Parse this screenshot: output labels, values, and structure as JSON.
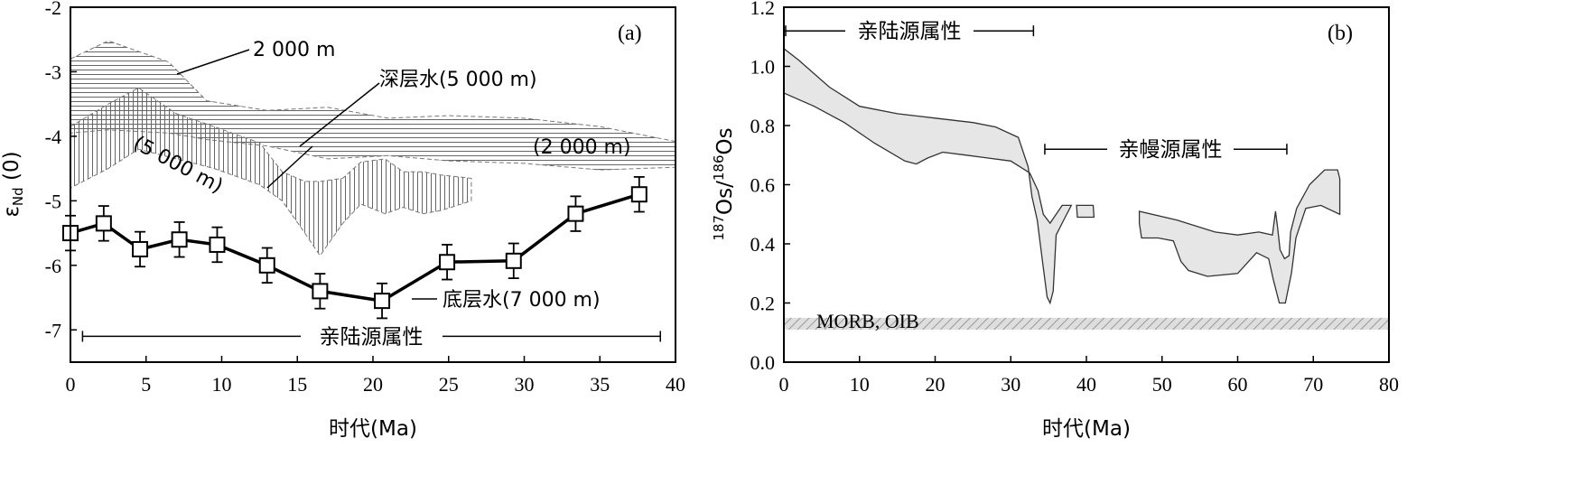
{
  "colors": {
    "ink": "#000000",
    "os_fill": "#e6e6e6",
    "band_stroke": "#777777",
    "morb_fill": "#d8d8d8"
  },
  "chart_data": [
    {
      "panel": "(a)",
      "type": "line",
      "xlabel": "时代(Ma)",
      "ylabel": "εNd (0)",
      "ylabel_main": "ε",
      "ylabel_sub": "Nd",
      "ylabel_tail": " (0)",
      "xlim": [
        0,
        40
      ],
      "ylim": [
        -7.5,
        -2
      ],
      "xticks": [
        "0",
        "5",
        "10",
        "15",
        "20",
        "25",
        "30",
        "35",
        "40"
      ],
      "yticks": [
        "-2",
        "-3",
        "-4",
        "-5",
        "-6",
        "-7"
      ],
      "grid": false,
      "series": [
        {
          "name": "底层水(7 000 m)",
          "x": [
            0,
            2.2,
            4.6,
            7.2,
            9.7,
            13,
            16.5,
            20.6,
            24.9,
            29.3,
            33.4,
            37.6
          ],
          "y": [
            -5.5,
            -5.35,
            -5.75,
            -5.6,
            -5.68,
            -6.0,
            -6.4,
            -6.55,
            -5.95,
            -5.93,
            -5.2,
            -4.9
          ],
          "err": [
            0.27,
            0.27,
            0.27,
            0.27,
            0.27,
            0.27,
            0.27,
            0.27,
            0.27,
            0.27,
            0.27,
            0.27
          ],
          "label_x": 22.2,
          "label_y": -6.55
        }
      ],
      "bands": [
        {
          "id": "band-2000m",
          "label": "2 000 m",
          "pattern": "horizontal",
          "x": [
            0,
            2.5,
            6.5,
            9,
            13,
            17,
            21,
            25,
            30,
            35,
            40
          ],
          "upper": [
            -2.8,
            -2.52,
            -2.85,
            -3.45,
            -3.6,
            -3.55,
            -3.72,
            -3.68,
            -3.72,
            -3.85,
            -4.08
          ],
          "lower": [
            -3.95,
            -3.9,
            -3.95,
            -4.05,
            -4.15,
            -4.35,
            -4.3,
            -4.38,
            -4.42,
            -4.52,
            -4.48
          ]
        },
        {
          "id": "band-5000m",
          "label": "(5 000 m)",
          "pattern": "vertical",
          "x": [
            0,
            2.5,
            4.5,
            7,
            9.5,
            12.5,
            14,
            15.5,
            16.5,
            18,
            19.2,
            20.8,
            22,
            23.3,
            24.5,
            26.5
          ],
          "upper": [
            -3.85,
            -3.5,
            -3.25,
            -3.65,
            -3.85,
            -4.1,
            -4.55,
            -4.7,
            -4.7,
            -4.65,
            -4.4,
            -4.35,
            -4.55,
            -4.55,
            -4.6,
            -4.65
          ],
          "lower": [
            -4.8,
            -4.5,
            -4.2,
            -4.35,
            -4.5,
            -4.75,
            -5.0,
            -5.5,
            -5.85,
            -5.35,
            -5.05,
            -5.2,
            -5.1,
            -5.2,
            -5.15,
            -5.0
          ]
        }
      ],
      "annotations": {
        "label_2000m": "2 000 m",
        "label_deep": "深层水(5 000 m)",
        "label_2000m_paren": "(2 000 m)",
        "label_5000m_paren": "(5 000 m)",
        "label_bottom": "底层水(7 000 m)",
        "range_label": "亲陆源属性",
        "range_x": [
          0.8,
          39
        ],
        "range_y": -7.1
      }
    },
    {
      "panel": "(b)",
      "type": "area",
      "xlabel": "时代(Ma)",
      "ylabel": "187Os/186Os",
      "ylabel_sup1": "187",
      "ylabel_mid": "Os/",
      "ylabel_sup2": "186",
      "ylabel_end": "Os",
      "xlim": [
        0,
        80
      ],
      "ylim": [
        0,
        1.2
      ],
      "xticks": [
        "0",
        "10",
        "20",
        "30",
        "40",
        "50",
        "60",
        "70",
        "80"
      ],
      "yticks": [
        "0.0",
        "0.2",
        "0.4",
        "0.6",
        "0.8",
        "1.0",
        "1.2"
      ],
      "grid": false,
      "regions": [
        {
          "id": "os-main",
          "points": [
            [
              0,
              1.06
            ],
            [
              2,
              1.02
            ],
            [
              6,
              0.93
            ],
            [
              10,
              0.865
            ],
            [
              15,
              0.84
            ],
            [
              20,
              0.825
            ],
            [
              25,
              0.81
            ],
            [
              28,
              0.795
            ],
            [
              31,
              0.76
            ],
            [
              32.3,
              0.66
            ],
            [
              32.8,
              0.56
            ],
            [
              33.5,
              0.48
            ],
            [
              34.2,
              0.34
            ],
            [
              34.8,
              0.22
            ],
            [
              35.2,
              0.2
            ],
            [
              35.6,
              0.24
            ],
            [
              35.8,
              0.33
            ],
            [
              36,
              0.43
            ],
            [
              37.2,
              0.49
            ],
            [
              38,
              0.53
            ],
            [
              36.8,
              0.53
            ],
            [
              35.2,
              0.47
            ],
            [
              34.3,
              0.5
            ],
            [
              33.6,
              0.58
            ],
            [
              32.5,
              0.64
            ],
            [
              30,
              0.68
            ],
            [
              27,
              0.69
            ],
            [
              24,
              0.7
            ],
            [
              21,
              0.71
            ],
            [
              19,
              0.69
            ],
            [
              17.5,
              0.67
            ],
            [
              16,
              0.68
            ],
            [
              12,
              0.74
            ],
            [
              8,
              0.81
            ],
            [
              4,
              0.865
            ],
            [
              0,
              0.91
            ]
          ]
        },
        {
          "id": "os-small",
          "points": [
            [
              38.7,
              0.53
            ],
            [
              40.9,
              0.53
            ],
            [
              41,
              0.49
            ],
            [
              38.8,
              0.49
            ]
          ]
        },
        {
          "id": "os-right",
          "points": [
            [
              47,
              0.51
            ],
            [
              52,
              0.48
            ],
            [
              57,
              0.44
            ],
            [
              60,
              0.43
            ],
            [
              62.8,
              0.44
            ],
            [
              64.6,
              0.43
            ],
            [
              65,
              0.51
            ],
            [
              65.3,
              0.45
            ],
            [
              65.6,
              0.38
            ],
            [
              66.2,
              0.35
            ],
            [
              66.8,
              0.36
            ],
            [
              67,
              0.44
            ],
            [
              67.8,
              0.52
            ],
            [
              69.5,
              0.6
            ],
            [
              71.5,
              0.65
            ],
            [
              73.2,
              0.65
            ],
            [
              73.5,
              0.62
            ],
            [
              73.5,
              0.5
            ],
            [
              71,
              0.53
            ],
            [
              69,
              0.52
            ],
            [
              67.7,
              0.42
            ],
            [
              67.1,
              0.3
            ],
            [
              66.3,
              0.2
            ],
            [
              65.5,
              0.2
            ],
            [
              64.7,
              0.28
            ],
            [
              64.1,
              0.35
            ],
            [
              62.5,
              0.37
            ],
            [
              60,
              0.3
            ],
            [
              56,
              0.29
            ],
            [
              53.5,
              0.31
            ],
            [
              52.5,
              0.34
            ],
            [
              51.5,
              0.41
            ],
            [
              49.5,
              0.42
            ],
            [
              47.3,
              0.42
            ],
            [
              47,
              0.47
            ]
          ]
        }
      ],
      "morb_band": {
        "label": "MORB, OIB",
        "y_range": [
          0.11,
          0.15
        ]
      },
      "annotations": {
        "range_top_label": "亲陆源属性",
        "range_top_x": [
          0,
          33
        ],
        "range_top_y": 1.12,
        "range_mid_label": "亲幔源属性",
        "range_mid_x": [
          34.5,
          66.5
        ],
        "range_mid_y": 0.72
      }
    }
  ]
}
